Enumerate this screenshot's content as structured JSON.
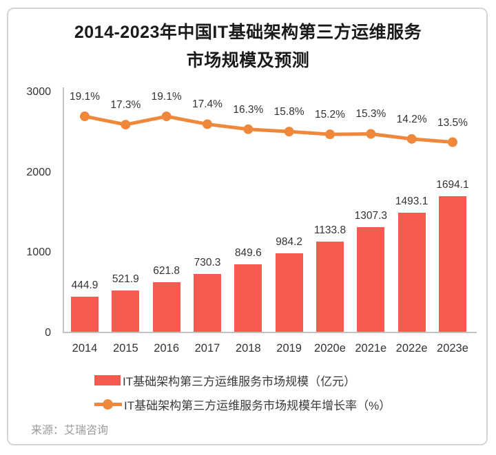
{
  "title": {
    "line1": "2014-2023年中国IT基础架构第三方运维服务",
    "line2": "市场规模及预测"
  },
  "source": "来源：艾瑞咨询",
  "colors": {
    "bar": "#f75b4f",
    "line": "#f0883c",
    "axis": "#c2c2c2",
    "label_text": "#333333",
    "source_text": "#9a9a9a"
  },
  "chart_data": {
    "type": "combo-bar-line",
    "title": "2014-2023年中国IT基础架构第三方运维服务市场规模及预测",
    "categories": [
      "2014",
      "2015",
      "2016",
      "2017",
      "2018",
      "2019",
      "2020e",
      "2021e",
      "2022e",
      "2023e"
    ],
    "series": [
      {
        "name": "IT基础架构第三方运维服务市场规模（亿元）",
        "type": "bar",
        "unit": "亿元",
        "values": [
          444.9,
          521.9,
          621.8,
          730.3,
          849.6,
          984.2,
          1133.8,
          1307.3,
          1493.1,
          1694.1
        ]
      },
      {
        "name": "IT基础架构第三方运维服务市场规模年增长率（%）",
        "type": "line",
        "unit": "%",
        "values": [
          19.1,
          17.3,
          19.1,
          17.4,
          16.3,
          15.8,
          15.2,
          15.3,
          14.2,
          13.5
        ]
      }
    ],
    "left_axis": {
      "min": 0,
      "max": 3000,
      "ticks": [
        3000,
        2000,
        1000,
        0
      ]
    },
    "right_axis_visible": false,
    "grid": false,
    "legend_position": "bottom",
    "data_labels": true
  }
}
